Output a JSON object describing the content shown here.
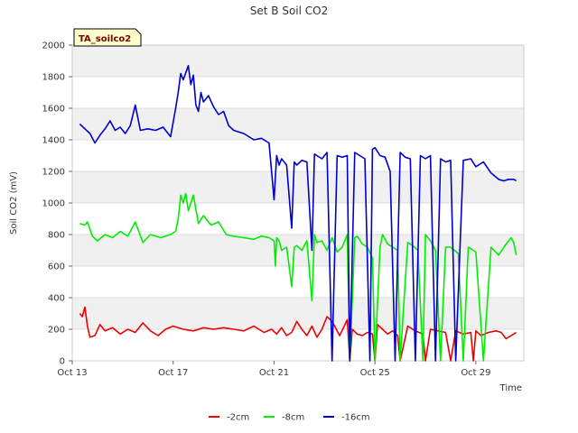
{
  "chart_data": {
    "type": "line",
    "title": "Set B Soil CO2",
    "xlabel": "Time",
    "ylabel": "Soil CO2 (mV)",
    "badge": "TA_soilco2",
    "xlim": [
      13,
      30.9
    ],
    "ylim": [
      0,
      2000
    ],
    "yticks": [
      0,
      200,
      400,
      600,
      800,
      1000,
      1200,
      1400,
      1600,
      1800,
      2000
    ],
    "yticks_labels": [
      "0",
      "200",
      "400",
      "600",
      "800",
      "1000",
      "1200",
      "1400",
      "1600",
      "1800",
      "2000"
    ],
    "xticks": [
      13,
      17,
      21,
      25,
      29
    ],
    "xticks_labels": [
      "Oct 13",
      "Oct 17",
      "Oct 21",
      "Oct 25",
      "Oct 29"
    ],
    "grid": true,
    "legend_position": "bottom",
    "series": [
      {
        "name": "-2cm",
        "color": "#ee0000",
        "x": [
          13.3,
          13.4,
          13.5,
          13.6,
          13.7,
          13.9,
          14.1,
          14.3,
          14.6,
          14.9,
          15.2,
          15.5,
          15.8,
          16.1,
          16.4,
          16.7,
          17.0,
          17.4,
          17.8,
          18.2,
          18.6,
          19.0,
          19.4,
          19.8,
          20.2,
          20.6,
          20.9,
          21.1,
          21.3,
          21.5,
          21.7,
          21.9,
          22.1,
          22.3,
          22.5,
          22.7,
          22.9,
          23.1,
          23.3,
          23.6,
          23.9,
          24.0,
          24.1,
          24.3,
          24.5,
          24.7,
          24.9,
          25.0,
          25.1,
          25.3,
          25.5,
          25.7,
          25.9,
          26.0,
          26.3,
          26.6,
          26.9,
          27.0,
          27.2,
          27.5,
          27.8,
          28.0,
          28.2,
          28.5,
          28.8,
          28.9,
          29.0,
          29.2,
          29.5,
          29.8,
          30.0,
          30.2,
          30.4,
          30.5,
          30.6
        ],
        "y": [
          300,
          280,
          340,
          220,
          150,
          160,
          230,
          190,
          210,
          170,
          200,
          180,
          240,
          190,
          160,
          200,
          220,
          200,
          190,
          210,
          200,
          210,
          200,
          190,
          220,
          180,
          200,
          170,
          210,
          160,
          180,
          250,
          200,
          160,
          220,
          150,
          200,
          280,
          250,
          160,
          260,
          0,
          200,
          170,
          160,
          180,
          170,
          0,
          230,
          200,
          170,
          190,
          160,
          0,
          220,
          190,
          170,
          0,
          200,
          190,
          180,
          0,
          190,
          170,
          180,
          0,
          190,
          160,
          180,
          190,
          180,
          140,
          160,
          170,
          180
        ]
      },
      {
        "name": "-8cm",
        "color": "#00ee00",
        "x": [
          13.3,
          13.5,
          13.6,
          13.8,
          14.0,
          14.3,
          14.6,
          14.9,
          15.2,
          15.5,
          15.8,
          16.1,
          16.5,
          16.9,
          17.1,
          17.2,
          17.3,
          17.4,
          17.5,
          17.6,
          17.8,
          18.0,
          18.2,
          18.5,
          18.8,
          19.1,
          19.4,
          19.8,
          20.2,
          20.5,
          20.8,
          21.0,
          21.05,
          21.1,
          21.2,
          21.3,
          21.5,
          21.7,
          21.8,
          21.9,
          22.1,
          22.3,
          22.5,
          22.6,
          22.7,
          22.9,
          23.1,
          23.3,
          23.5,
          23.7,
          23.9,
          24.0,
          24.2,
          24.3,
          24.5,
          24.7,
          24.9,
          25.0,
          25.2,
          25.3,
          25.5,
          25.7,
          25.9,
          26.0,
          26.3,
          26.5,
          26.7,
          26.9,
          27.0,
          27.2,
          27.4,
          27.6,
          27.8,
          28.0,
          28.3,
          28.5,
          28.7,
          28.9,
          29.0,
          29.3,
          29.6,
          29.9,
          30.2,
          30.4,
          30.5,
          30.6
        ],
        "y": [
          870,
          860,
          880,
          790,
          760,
          800,
          780,
          820,
          790,
          880,
          750,
          800,
          780,
          800,
          820,
          900,
          1050,
          1000,
          1060,
          950,
          1050,
          870,
          920,
          860,
          880,
          800,
          790,
          780,
          770,
          790,
          780,
          760,
          600,
          780,
          760,
          700,
          720,
          470,
          720,
          730,
          700,
          760,
          380,
          800,
          750,
          760,
          700,
          780,
          690,
          720,
          800,
          0,
          780,
          790,
          740,
          720,
          650,
          0,
          720,
          800,
          740,
          720,
          700,
          0,
          750,
          730,
          700,
          0,
          800,
          760,
          700,
          0,
          720,
          720,
          680,
          0,
          720,
          700,
          690,
          0,
          720,
          670,
          740,
          780,
          750,
          670
        ]
      },
      {
        "name": "-16cm",
        "color": "#0000cc",
        "x": [
          13.3,
          13.5,
          13.7,
          13.9,
          14.1,
          14.3,
          14.5,
          14.7,
          14.9,
          15.1,
          15.3,
          15.5,
          15.7,
          16.0,
          16.3,
          16.6,
          16.9,
          17.1,
          17.2,
          17.3,
          17.4,
          17.6,
          17.7,
          17.8,
          17.9,
          18.0,
          18.1,
          18.2,
          18.4,
          18.6,
          18.8,
          19.0,
          19.2,
          19.4,
          19.6,
          19.8,
          20.0,
          20.2,
          20.5,
          20.8,
          21.0,
          21.1,
          21.2,
          21.3,
          21.5,
          21.7,
          21.8,
          21.9,
          22.1,
          22.3,
          22.5,
          22.6,
          22.7,
          22.9,
          23.1,
          23.3,
          23.5,
          23.7,
          23.9,
          24.0,
          24.2,
          24.4,
          24.6,
          24.8,
          24.9,
          25.0,
          25.2,
          25.4,
          25.6,
          25.8,
          26.0,
          26.2,
          26.4,
          26.6,
          26.8,
          27.0,
          27.2,
          27.4,
          27.6,
          27.8,
          28.0,
          28.2,
          28.5,
          28.8,
          29.0,
          29.3,
          29.6,
          29.9,
          30.1,
          30.3,
          30.5,
          30.6
        ],
        "y": [
          1500,
          1470,
          1440,
          1380,
          1430,
          1470,
          1520,
          1460,
          1480,
          1440,
          1490,
          1620,
          1460,
          1470,
          1460,
          1480,
          1420,
          1600,
          1700,
          1820,
          1780,
          1870,
          1750,
          1810,
          1620,
          1580,
          1700,
          1640,
          1680,
          1610,
          1560,
          1580,
          1490,
          1460,
          1450,
          1440,
          1420,
          1400,
          1410,
          1380,
          1020,
          1300,
          1240,
          1280,
          1240,
          840,
          1260,
          1240,
          1270,
          1260,
          700,
          1310,
          1300,
          1280,
          1320,
          0,
          1300,
          1290,
          1300,
          0,
          1320,
          1300,
          1280,
          0,
          1340,
          1350,
          1300,
          1290,
          1200,
          0,
          1320,
          1290,
          1280,
          0,
          1300,
          1280,
          1300,
          0,
          1280,
          1260,
          1270,
          0,
          1270,
          1280,
          1230,
          1260,
          1190,
          1150,
          1140,
          1150,
          1150,
          1140
        ]
      }
    ]
  }
}
